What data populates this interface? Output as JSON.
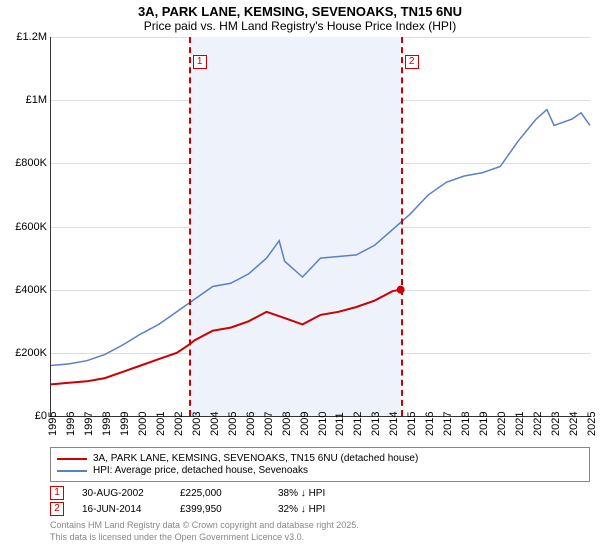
{
  "title": "3A, PARK LANE, KEMSING, SEVENOAKS, TN15 6NU",
  "subtitle": "Price paid vs. HM Land Registry's House Price Index (HPI)",
  "chart": {
    "type": "line",
    "x_years": [
      1995,
      1996,
      1997,
      1998,
      1999,
      2000,
      2001,
      2002,
      2003,
      2004,
      2005,
      2006,
      2007,
      2008,
      2009,
      2010,
      2011,
      2012,
      2013,
      2014,
      2015,
      2016,
      2017,
      2018,
      2019,
      2020,
      2021,
      2022,
      2023,
      2024,
      2025
    ],
    "ylim": [
      0,
      1200000
    ],
    "ytick_step": 200000,
    "ytick_labels": [
      "£0",
      "£200K",
      "£400K",
      "£600K",
      "£800K",
      "£1M",
      "£1.2M"
    ],
    "grid_color": "#dddddd",
    "background_color": "#ffffff",
    "highlight_band": {
      "from_year": 2002.66,
      "to_year": 2014.46,
      "color": "#eef2fb"
    },
    "series": [
      {
        "name": "price_paid",
        "label": "3A, PARK LANE, KEMSING, SEVENOAKS, TN15 6NU (detached house)",
        "color": "#cc0000",
        "width": 2,
        "points": [
          [
            1995,
            100000
          ],
          [
            1996,
            105000
          ],
          [
            1997,
            110000
          ],
          [
            1998,
            120000
          ],
          [
            1999,
            140000
          ],
          [
            2000,
            160000
          ],
          [
            2001,
            180000
          ],
          [
            2002,
            200000
          ],
          [
            2002.66,
            225000
          ],
          [
            2003,
            240000
          ],
          [
            2004,
            270000
          ],
          [
            2005,
            280000
          ],
          [
            2006,
            300000
          ],
          [
            2007,
            330000
          ],
          [
            2008,
            310000
          ],
          [
            2009,
            290000
          ],
          [
            2010,
            320000
          ],
          [
            2011,
            330000
          ],
          [
            2012,
            345000
          ],
          [
            2013,
            365000
          ],
          [
            2014,
            395000
          ],
          [
            2014.46,
            399950
          ]
        ],
        "end_dot": true
      },
      {
        "name": "hpi",
        "label": "HPI: Average price, detached house, Sevenoaks",
        "color": "#5b7fc7",
        "width": 1.5,
        "points": [
          [
            1995,
            160000
          ],
          [
            1996,
            165000
          ],
          [
            1997,
            175000
          ],
          [
            1998,
            195000
          ],
          [
            1999,
            225000
          ],
          [
            2000,
            260000
          ],
          [
            2001,
            290000
          ],
          [
            2002,
            330000
          ],
          [
            2003,
            370000
          ],
          [
            2004,
            410000
          ],
          [
            2005,
            420000
          ],
          [
            2006,
            450000
          ],
          [
            2007,
            500000
          ],
          [
            2007.7,
            555000
          ],
          [
            2008,
            490000
          ],
          [
            2009,
            440000
          ],
          [
            2010,
            500000
          ],
          [
            2011,
            505000
          ],
          [
            2012,
            510000
          ],
          [
            2013,
            540000
          ],
          [
            2014,
            590000
          ],
          [
            2015,
            640000
          ],
          [
            2016,
            700000
          ],
          [
            2017,
            740000
          ],
          [
            2018,
            760000
          ],
          [
            2019,
            770000
          ],
          [
            2020,
            790000
          ],
          [
            2021,
            870000
          ],
          [
            2022,
            940000
          ],
          [
            2022.6,
            970000
          ],
          [
            2023,
            920000
          ],
          [
            2024,
            940000
          ],
          [
            2024.5,
            960000
          ],
          [
            2025,
            920000
          ]
        ],
        "end_dot": false
      }
    ],
    "markers": [
      {
        "id": "1",
        "year": 2002.66
      },
      {
        "id": "2",
        "year": 2014.46
      }
    ]
  },
  "sales": [
    {
      "id": "1",
      "date": "30-AUG-2002",
      "price": "£225,000",
      "delta": "38% ↓ HPI"
    },
    {
      "id": "2",
      "date": "16-JUN-2014",
      "price": "£399,950",
      "delta": "32% ↓ HPI"
    }
  ],
  "footer": {
    "line1": "Contains HM Land Registry data © Crown copyright and database right 2025.",
    "line2": "This data is licensed under the Open Government Licence v3.0."
  }
}
